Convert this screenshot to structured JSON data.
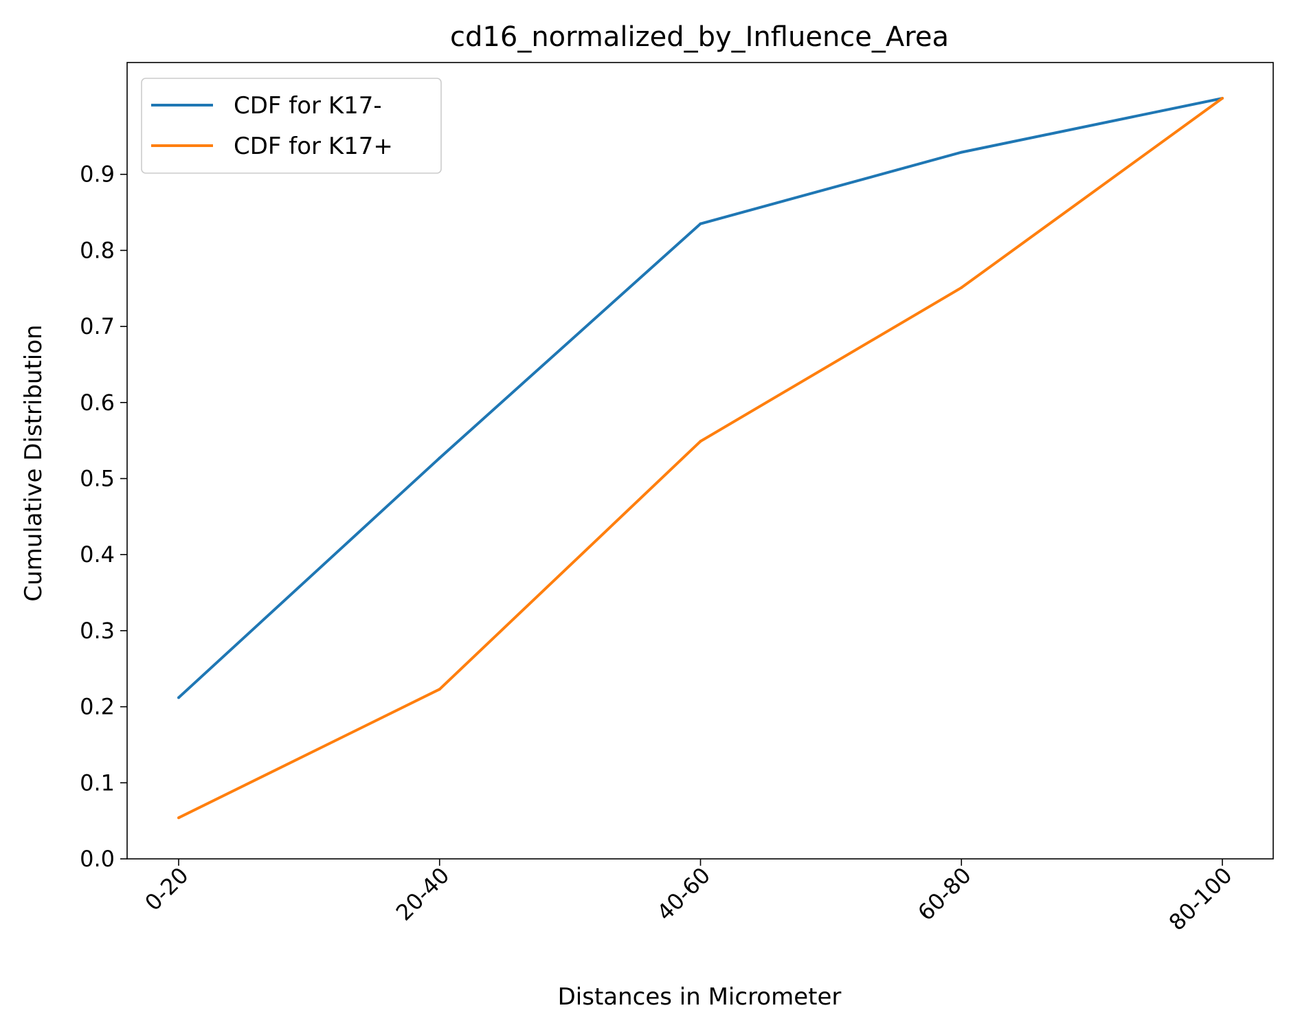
{
  "chart_data": {
    "type": "line",
    "title": "cd16_normalized_by_Influence_Area",
    "xlabel": "Distances in Micrometer",
    "ylabel": "Cumulative Distribution",
    "categories": [
      "0-20",
      "20-40",
      "40-60",
      "60-80",
      "80-100"
    ],
    "yticks": [
      "0.0",
      "0.1",
      "0.2",
      "0.3",
      "0.4",
      "0.5",
      "0.6",
      "0.7",
      "0.8",
      "0.9"
    ],
    "ylim": [
      0.0,
      1.047
    ],
    "grid": false,
    "legend_position": "upper left",
    "series": [
      {
        "name": "CDF for K17-",
        "color": "#1f77b4",
        "values": [
          0.212,
          0.527,
          0.835,
          0.929,
          1.0
        ]
      },
      {
        "name": "CDF for K17+",
        "color": "#ff7f0e",
        "values": [
          0.054,
          0.223,
          0.549,
          0.751,
          1.0
        ]
      }
    ]
  }
}
